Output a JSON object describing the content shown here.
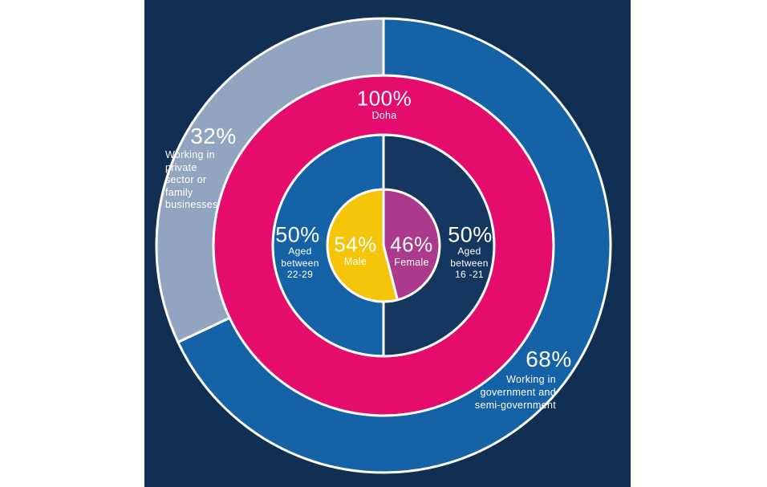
{
  "page": {
    "background_color": "#ffffff",
    "panel_color": "#112E53"
  },
  "chart_data": {
    "type": "pie",
    "subtype": "concentric-donut",
    "direction": "clockwise",
    "start_angle": "top",
    "stroke_color": "#ffffff",
    "stroke_width": 3,
    "radii": [
      0,
      70,
      138,
      212,
      283
    ],
    "rings": [
      {
        "name": "gender",
        "segments": [
          {
            "id": "female",
            "label": "Female",
            "value": 46,
            "value_label": "46%",
            "caption": "Female",
            "color": "#AC3A8C",
            "text_color": "#ffffff"
          },
          {
            "id": "male",
            "label": "Male",
            "value": 54,
            "value_label": "54%",
            "caption": "Male",
            "color": "#F4C508",
            "text_color": "#ffffff"
          }
        ]
      },
      {
        "name": "age",
        "segments": [
          {
            "id": "age-16-21",
            "label": "Aged between 16 -21",
            "value": 50,
            "value_label": "50%",
            "caption": "Aged\nbetween\n16 -21",
            "color": "#15375F",
            "text_color": "#ffffff"
          },
          {
            "id": "age-22-29",
            "label": "Aged between 22-29",
            "value": 50,
            "value_label": "50%",
            "caption": "Aged\nbetween\n22-29",
            "color": "#1562A7",
            "text_color": "#ffffff"
          }
        ]
      },
      {
        "name": "location",
        "segments": [
          {
            "id": "doha",
            "label": "Doha",
            "value": 100,
            "value_label": "100%",
            "caption": "Doha",
            "color": "#E40D6E",
            "text_color": "#ffffff"
          }
        ]
      },
      {
        "name": "employment",
        "segments": [
          {
            "id": "government",
            "label": "Working in government and semi-government",
            "value": 68,
            "value_label": "68%",
            "caption": "Working in\ngovernment and\nsemi-government",
            "color": "#1562A7",
            "text_color": "#ffffff"
          },
          {
            "id": "private",
            "label": "Working in private sector or family businesses",
            "value": 32,
            "value_label": "32%",
            "caption": "Working in\nprivate\nsector or\nfamily\nbusinesses",
            "color": "#91A4C0",
            "text_color": "#ffffff"
          }
        ]
      }
    ]
  }
}
